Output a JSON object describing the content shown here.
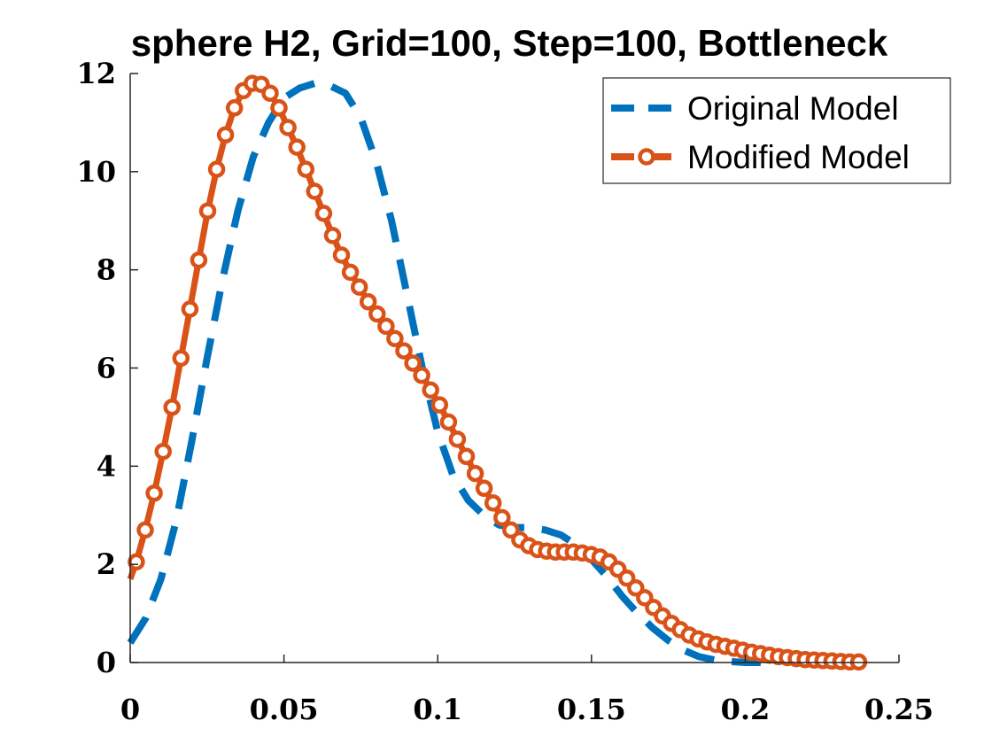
{
  "chart_data": {
    "type": "line",
    "title": "sphere H2, Grid=100, Step=100, Bottleneck",
    "xlabel": "",
    "ylabel": "",
    "xlim": [
      0,
      0.25
    ],
    "ylim": [
      0,
      12
    ],
    "x_ticks": [
      0,
      0.05,
      0.1,
      0.15,
      0.2,
      0.25
    ],
    "x_tick_labels": [
      "0",
      "0.05",
      "0.1",
      "0.15",
      "0.2",
      "0.25"
    ],
    "y_ticks": [
      0,
      2,
      4,
      6,
      8,
      10,
      12
    ],
    "y_tick_labels": [
      "0",
      "2",
      "4",
      "6",
      "8",
      "10",
      "12"
    ],
    "grid": false,
    "legend_position": "top-right",
    "series": [
      {
        "name": "Original Model",
        "color": "#0072BD",
        "style": "dashed",
        "x": [
          0,
          0.005,
          0.01,
          0.015,
          0.02,
          0.025,
          0.03,
          0.035,
          0.04,
          0.045,
          0.05,
          0.055,
          0.06,
          0.065,
          0.07,
          0.075,
          0.08,
          0.085,
          0.09,
          0.095,
          0.1,
          0.105,
          0.11,
          0.115,
          0.12,
          0.125,
          0.13,
          0.135,
          0.14,
          0.145,
          0.15,
          0.155,
          0.16,
          0.165,
          0.17,
          0.175,
          0.18,
          0.185,
          0.19,
          0.195,
          0.2,
          0.205
        ],
        "y": [
          0.4,
          0.9,
          1.7,
          2.9,
          4.5,
          6.2,
          7.8,
          9.2,
          10.3,
          11.0,
          11.5,
          11.7,
          11.8,
          11.75,
          11.6,
          11.1,
          10.2,
          9.0,
          7.5,
          6.0,
          4.7,
          3.8,
          3.3,
          3.0,
          2.8,
          2.75,
          2.75,
          2.7,
          2.6,
          2.4,
          2.1,
          1.75,
          1.35,
          1.0,
          0.7,
          0.45,
          0.25,
          0.12,
          0.05,
          0.02,
          0.0,
          0.0
        ]
      },
      {
        "name": "Modified Model",
        "color": "#D95319",
        "style": "solid-circle-markers",
        "x": [
          0.0,
          0.002,
          0.0049,
          0.0078,
          0.0107,
          0.0136,
          0.0165,
          0.0194,
          0.0223,
          0.0252,
          0.0281,
          0.031,
          0.0339,
          0.0368,
          0.0397,
          0.0426,
          0.0455,
          0.0484,
          0.0513,
          0.0542,
          0.0571,
          0.06,
          0.0629,
          0.0658,
          0.0687,
          0.0716,
          0.0745,
          0.0774,
          0.0803,
          0.0832,
          0.0861,
          0.089,
          0.0919,
          0.0948,
          0.0977,
          0.1006,
          0.1035,
          0.1064,
          0.1093,
          0.1122,
          0.1151,
          0.118,
          0.1209,
          0.1238,
          0.1267,
          0.1296,
          0.1325,
          0.1354,
          0.1383,
          0.1412,
          0.1441,
          0.147,
          0.1499,
          0.1528,
          0.1557,
          0.1586,
          0.1615,
          0.1644,
          0.1673,
          0.1702,
          0.1731,
          0.176,
          0.1789,
          0.1818,
          0.1847,
          0.1876,
          0.1905,
          0.1934,
          0.1963,
          0.1992,
          0.2021,
          0.205,
          0.2079,
          0.2108,
          0.2137,
          0.2166,
          0.2195,
          0.2224,
          0.2253,
          0.2282,
          0.2311,
          0.234,
          0.2369
        ],
        "y": [
          1.7,
          2.05,
          2.7,
          3.45,
          4.3,
          5.2,
          6.2,
          7.2,
          8.2,
          9.2,
          10.05,
          10.75,
          11.3,
          11.65,
          11.8,
          11.78,
          11.6,
          11.3,
          10.9,
          10.5,
          10.05,
          9.6,
          9.15,
          8.7,
          8.3,
          7.95,
          7.65,
          7.35,
          7.1,
          6.85,
          6.6,
          6.35,
          6.1,
          5.85,
          5.55,
          5.25,
          4.9,
          4.55,
          4.2,
          3.85,
          3.55,
          3.25,
          2.95,
          2.7,
          2.5,
          2.38,
          2.3,
          2.27,
          2.25,
          2.25,
          2.25,
          2.23,
          2.2,
          2.15,
          2.05,
          1.9,
          1.72,
          1.52,
          1.32,
          1.12,
          0.95,
          0.8,
          0.67,
          0.56,
          0.48,
          0.42,
          0.37,
          0.33,
          0.29,
          0.25,
          0.21,
          0.18,
          0.15,
          0.12,
          0.1,
          0.08,
          0.06,
          0.05,
          0.04,
          0.03,
          0.02,
          0.01,
          0.01
        ]
      }
    ]
  }
}
